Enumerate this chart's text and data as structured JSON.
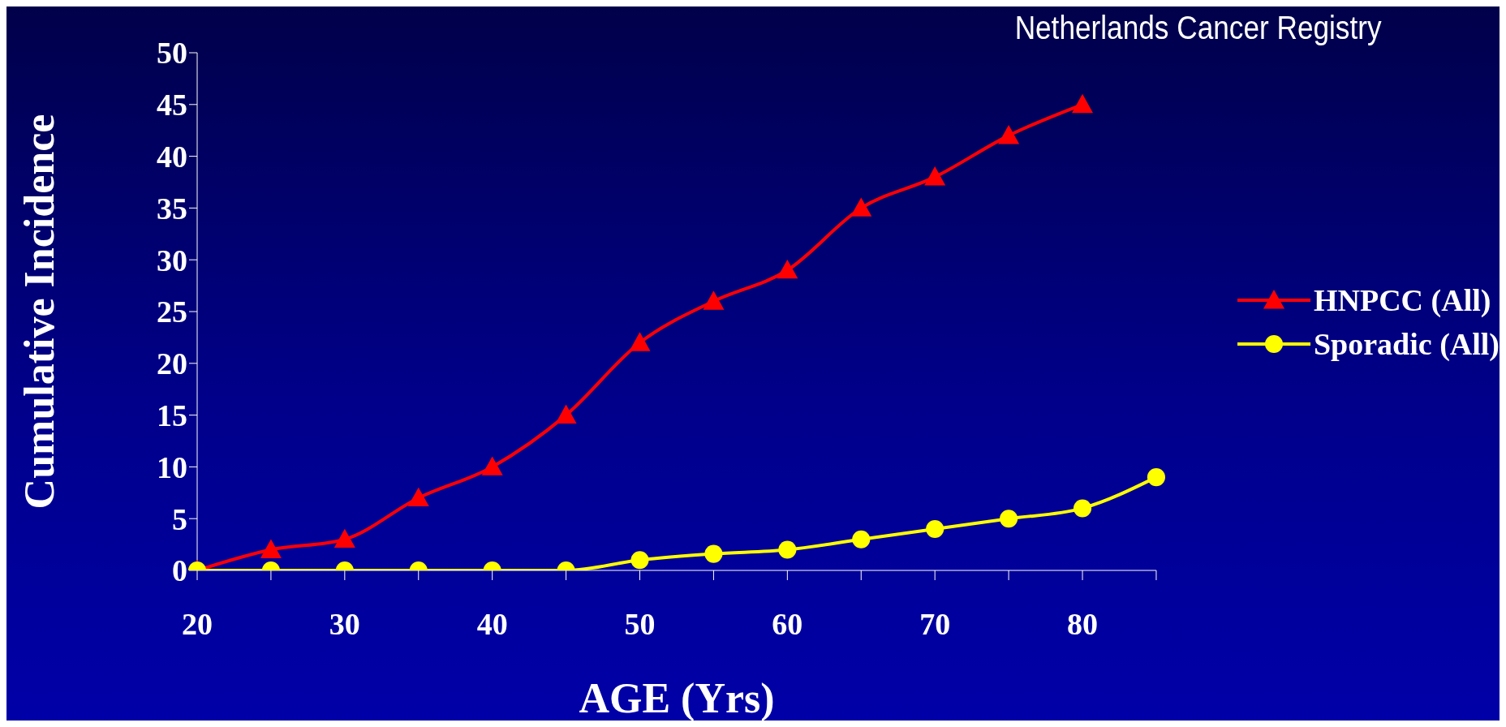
{
  "chart_data": {
    "type": "line",
    "xlabel": "AGE (Yrs)",
    "ylabel": "Cumulative Incidence",
    "annotations": [
      "Netherlands Cancer Registry"
    ],
    "categories": [
      "20",
      null,
      "30",
      null,
      "40",
      null,
      "50",
      null,
      "60",
      null,
      "70",
      null,
      "80",
      null
    ],
    "series": [
      {
        "name": "HNPCC (All)",
        "color": "#ff0000",
        "marker": "triangle",
        "values": [
          0,
          2,
          3,
          7,
          10,
          15,
          22,
          26,
          29,
          35,
          38,
          42,
          45,
          null
        ]
      },
      {
        "name": "Sporadic (All)",
        "color": "#ffff00",
        "marker": "circle",
        "values": [
          0,
          0,
          0,
          0,
          0,
          0,
          1,
          1.6,
          2,
          3,
          4,
          5,
          6,
          9
        ]
      }
    ],
    "ylim": [
      0,
      50
    ],
    "yticks": [
      0,
      5,
      10,
      15,
      20,
      25,
      30,
      35,
      40,
      45,
      50
    ],
    "grid": false,
    "legend": "right",
    "line_style": "solid"
  }
}
